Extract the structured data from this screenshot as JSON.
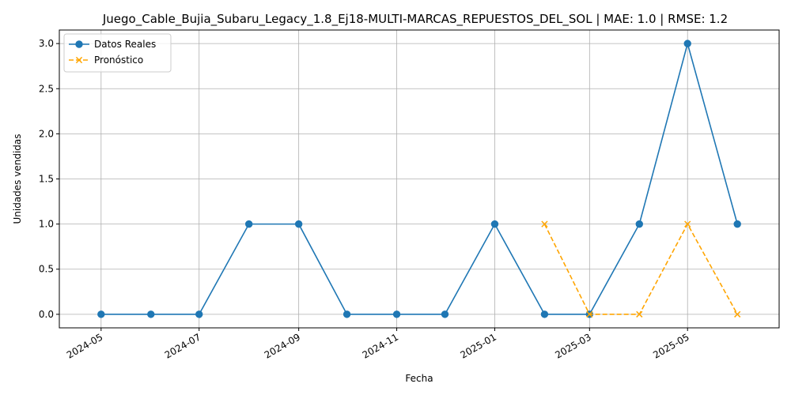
{
  "chart_data": {
    "type": "line",
    "title": "Juego_Cable_Bujia_Subaru_Legacy_1.8_Ej18-MULTI-MARCAS_REPUESTOS_DEL_SOL | MAE: 1.0 | RMSE: 1.2",
    "xlabel": "Fecha",
    "ylabel": "Unidades vendidas",
    "xlim": [
      "2024-04-05",
      "2025-06-27"
    ],
    "ylim": [
      -0.15,
      3.15
    ],
    "x_ticks": [
      "2024-05",
      "2024-07",
      "2024-09",
      "2024-11",
      "2025-01",
      "2025-03",
      "2025-05"
    ],
    "y_ticks": [
      "0.0",
      "0.5",
      "1.0",
      "1.5",
      "2.0",
      "2.5",
      "3.0"
    ],
    "grid": true,
    "legend_position": "top-left",
    "series": [
      {
        "name": "Datos Reales",
        "color": "#1f77b4",
        "line_style": "solid",
        "marker": "circle",
        "x": [
          "2024-05-01",
          "2024-06-01",
          "2024-07-01",
          "2024-08-01",
          "2024-09-01",
          "2024-10-01",
          "2024-11-01",
          "2024-12-01",
          "2025-01-01",
          "2025-02-01",
          "2025-03-01",
          "2025-04-01",
          "2025-05-01",
          "2025-06-01"
        ],
        "values": [
          0,
          0,
          0,
          1,
          1,
          0,
          0,
          0,
          1,
          0,
          0,
          1,
          3,
          1
        ]
      },
      {
        "name": "Pronóstico",
        "color": "#ffa500",
        "line_style": "dashed",
        "marker": "x",
        "x": [
          "2025-02-01",
          "2025-03-01",
          "2025-04-01",
          "2025-05-01",
          "2025-06-01"
        ],
        "values": [
          1,
          0,
          0,
          1,
          0
        ]
      }
    ]
  }
}
